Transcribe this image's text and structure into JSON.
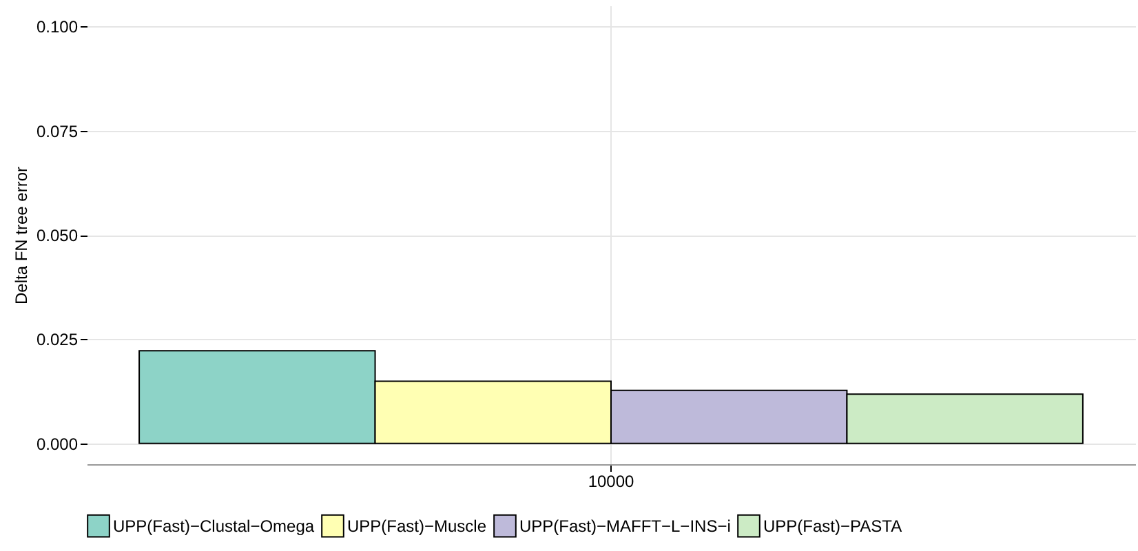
{
  "chart_data": {
    "type": "bar",
    "ylabel": "Delta FN tree error",
    "categories": [
      "10000"
    ],
    "series": [
      {
        "name": "UPP(Fast)−Clustal−Omega",
        "color": "#8dd3c7",
        "values": [
          0.0222
        ]
      },
      {
        "name": "UPP(Fast)−Muscle",
        "color": "#ffffb3",
        "values": [
          0.0149
        ]
      },
      {
        "name": "UPP(Fast)−MAFFT−L−INS−i",
        "color": "#bebada",
        "values": [
          0.0127
        ]
      },
      {
        "name": "UPP(Fast)−PASTA",
        "color": "#ccebc5",
        "values": [
          0.0118
        ]
      }
    ],
    "ylim": [
      -0.005,
      0.105
    ],
    "yticks": [
      {
        "value": 0,
        "label": "0.000"
      },
      {
        "value": 0.025,
        "label": "0.025"
      },
      {
        "value": 0.05,
        "label": "0.050"
      },
      {
        "value": 0.075,
        "label": "0.075"
      },
      {
        "value": 0.1,
        "label": "0.100"
      }
    ],
    "grid": true,
    "legend": "bottom"
  }
}
